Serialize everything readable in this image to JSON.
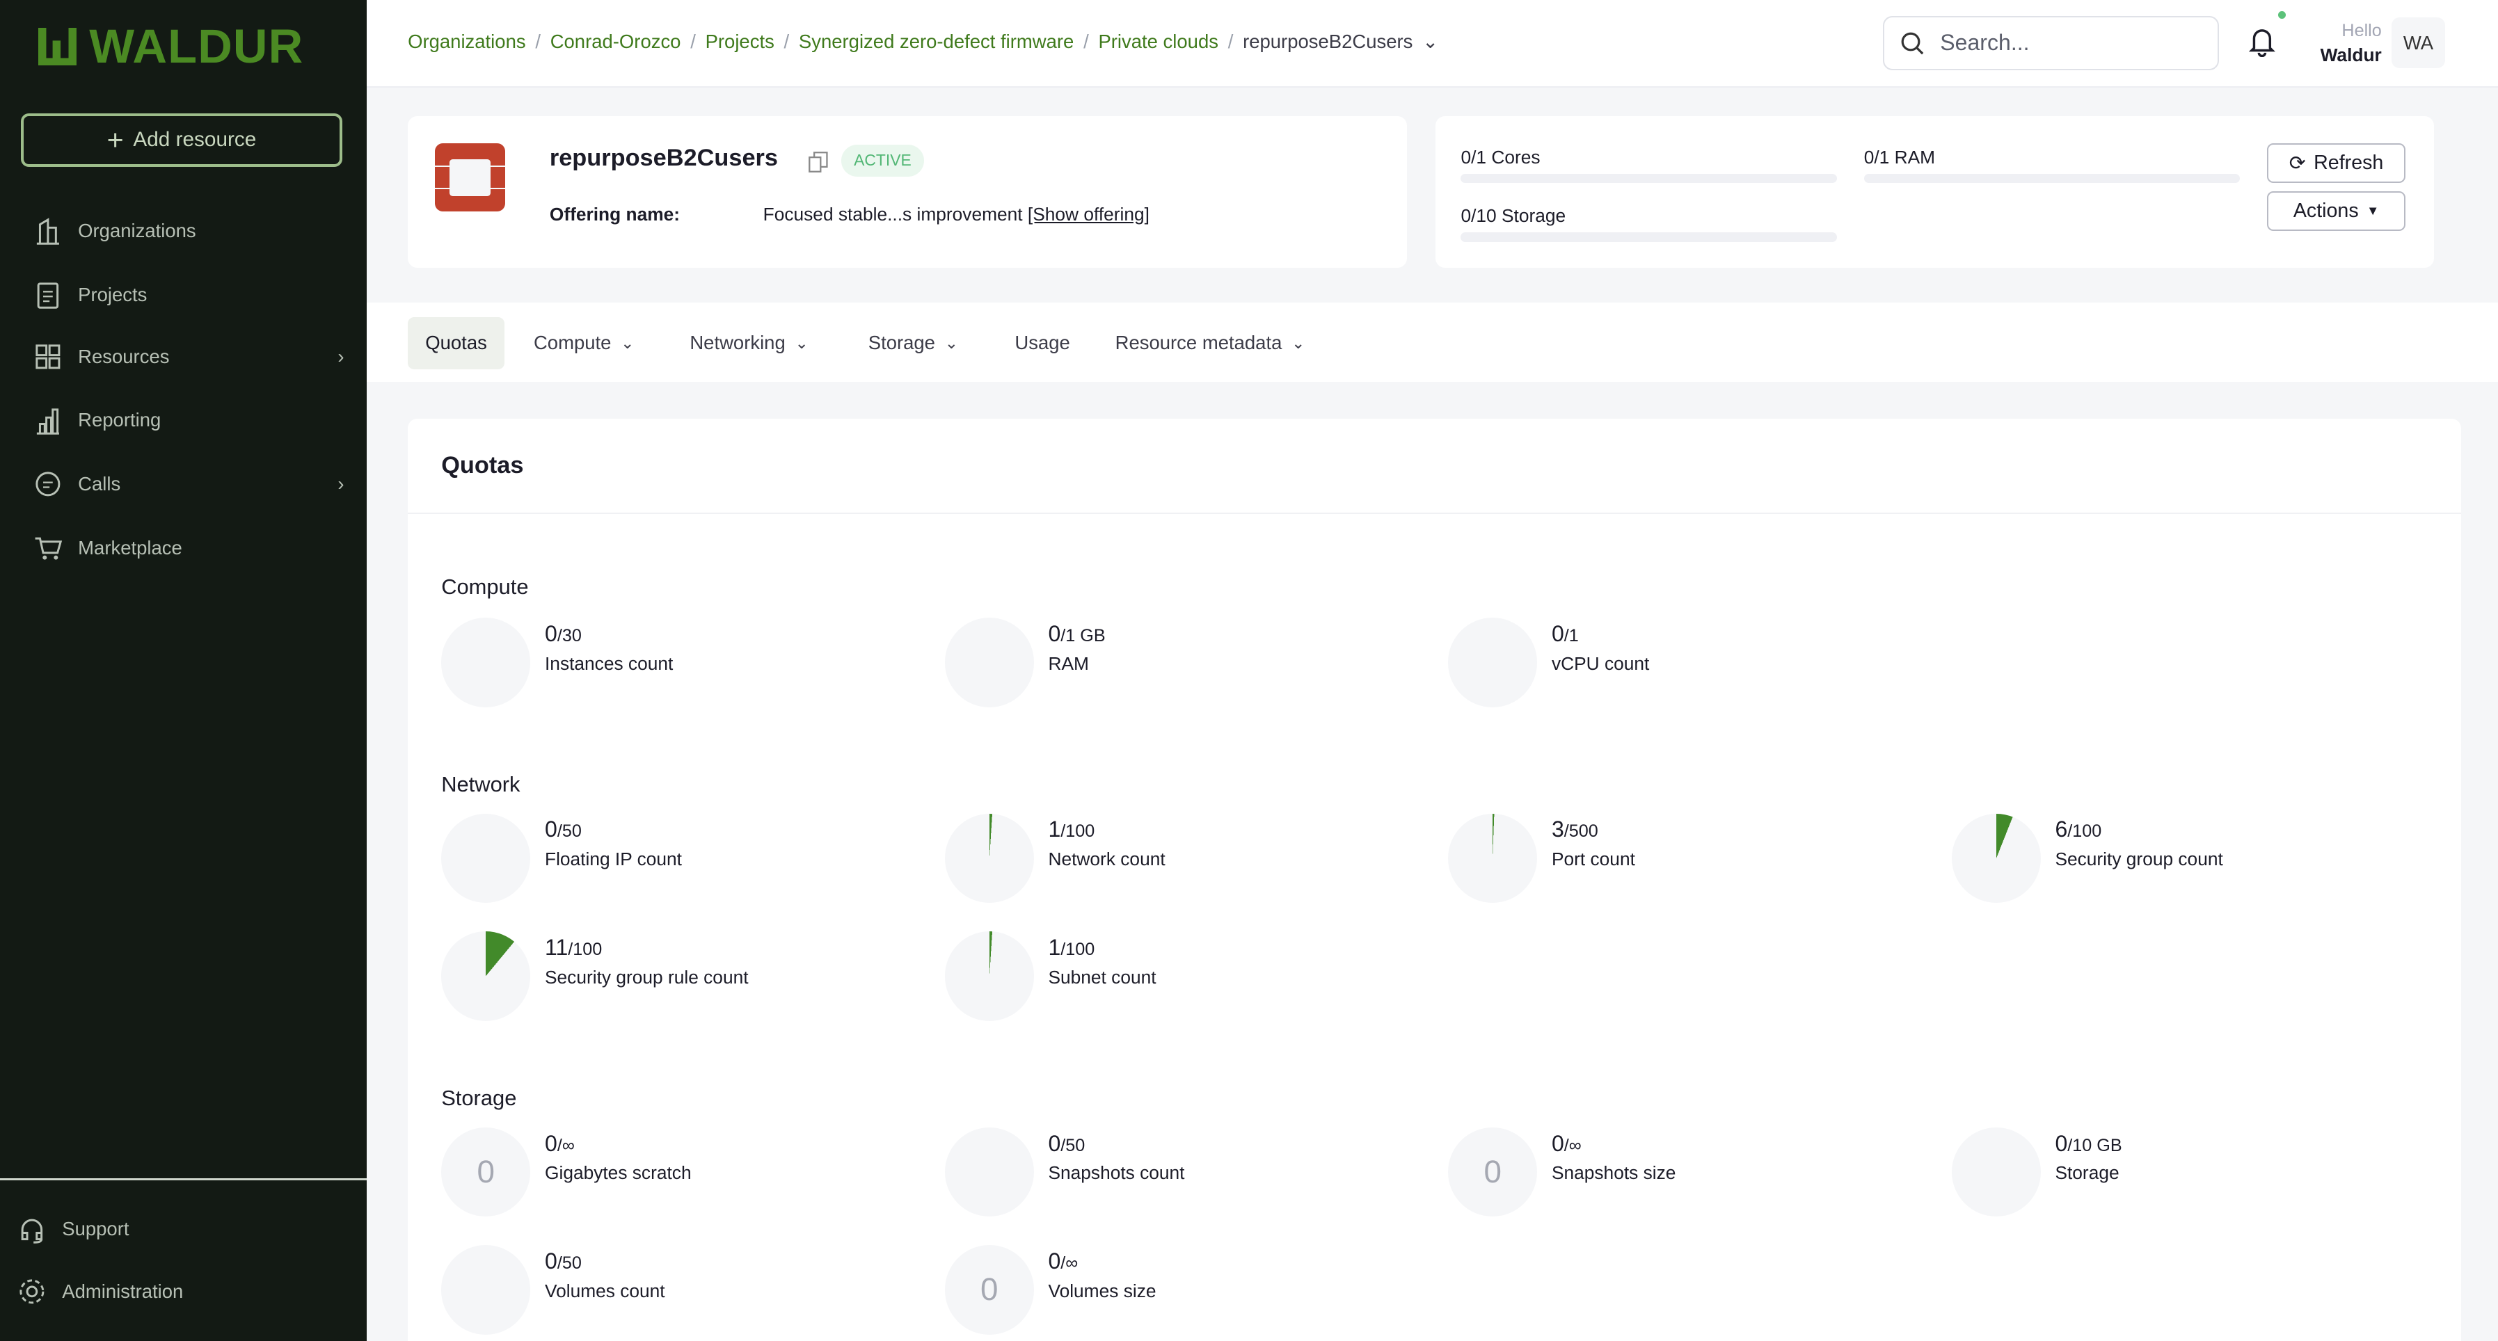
{
  "sidebar": {
    "logo": "WALDUR",
    "add_resource": "Add resource",
    "items": [
      {
        "label": "Organizations",
        "icon": "building-icon"
      },
      {
        "label": "Projects",
        "icon": "clipboard-icon"
      },
      {
        "label": "Resources",
        "icon": "grid-icon",
        "chevron": true
      },
      {
        "label": "Reporting",
        "icon": "bar-chart-icon"
      },
      {
        "label": "Calls",
        "icon": "message-icon",
        "chevron": true
      },
      {
        "label": "Marketplace",
        "icon": "cart-icon"
      }
    ],
    "bottom": [
      {
        "label": "Support",
        "icon": "headset-icon"
      },
      {
        "label": "Administration",
        "icon": "gear-icon"
      }
    ]
  },
  "header": {
    "breadcrumbs": [
      "Organizations",
      "Conrad-Orozco",
      "Projects",
      "Synergized zero-defect firmware",
      "Private clouds"
    ],
    "current": "repurposeB2Cusers",
    "search_placeholder": "Search...",
    "greeting": "Hello",
    "user": "Waldur",
    "avatar": "WA"
  },
  "resource": {
    "name": "repurposeB2Cusers",
    "status": "ACTIVE",
    "offering_label": "Offering name:",
    "offering_value": "Focused stable...s improvement",
    "show_offering": "[Show offering]",
    "brand_color": "#c1412c"
  },
  "summary": {
    "quotas": [
      {
        "label": "0/1 Cores",
        "usage": 0
      },
      {
        "label": "0/1 RAM",
        "usage": 0
      },
      {
        "label": "0/10 Storage",
        "usage": 0
      }
    ],
    "refresh": "Refresh",
    "actions": "Actions"
  },
  "tabs": [
    {
      "label": "Quotas",
      "active": true
    },
    {
      "label": "Compute",
      "dropdown": true
    },
    {
      "label": "Networking",
      "dropdown": true
    },
    {
      "label": "Storage",
      "dropdown": true
    },
    {
      "label": "Usage"
    },
    {
      "label": "Resource metadata",
      "dropdown": true
    }
  ],
  "quotas": {
    "title": "Quotas",
    "accent": "#428a2a",
    "sections": [
      {
        "title": "Compute",
        "items": [
          {
            "used": "0",
            "limit": "/30",
            "label": "Instances count",
            "fraction": 0
          },
          {
            "used": "0",
            "limit": "/1 GB",
            "label": "RAM",
            "fraction": 0
          },
          {
            "used": "0",
            "limit": "/1",
            "label": "vCPU count",
            "fraction": 0
          }
        ]
      },
      {
        "title": "Network",
        "items": [
          {
            "used": "0",
            "limit": "/50",
            "label": "Floating IP count",
            "fraction": 0
          },
          {
            "used": "1",
            "limit": "/100",
            "label": "Network count",
            "fraction": 0.01
          },
          {
            "used": "3",
            "limit": "/500",
            "label": "Port count",
            "fraction": 0.006
          },
          {
            "used": "6",
            "limit": "/100",
            "label": "Security group count",
            "fraction": 0.06
          },
          {
            "used": "11",
            "limit": "/100",
            "label": "Security group rule count",
            "fraction": 0.11
          },
          {
            "used": "1",
            "limit": "/100",
            "label": "Subnet count",
            "fraction": 0.01
          }
        ]
      },
      {
        "title": "Storage",
        "items": [
          {
            "used": "0",
            "limit": "/∞",
            "label": "Gigabytes scratch",
            "fraction": 0,
            "unlimited": true,
            "center": "0"
          },
          {
            "used": "0",
            "limit": "/50",
            "label": "Snapshots count",
            "fraction": 0
          },
          {
            "used": "0",
            "limit": "/∞",
            "label": "Snapshots size",
            "fraction": 0,
            "unlimited": true,
            "center": "0"
          },
          {
            "used": "0",
            "limit": "/10 GB",
            "label": "Storage",
            "fraction": 0
          },
          {
            "used": "0",
            "limit": "/50",
            "label": "Volumes count",
            "fraction": 0
          },
          {
            "used": "0",
            "limit": "/∞",
            "label": "Volumes size",
            "fraction": 0,
            "unlimited": true,
            "center": "0"
          }
        ]
      }
    ]
  }
}
